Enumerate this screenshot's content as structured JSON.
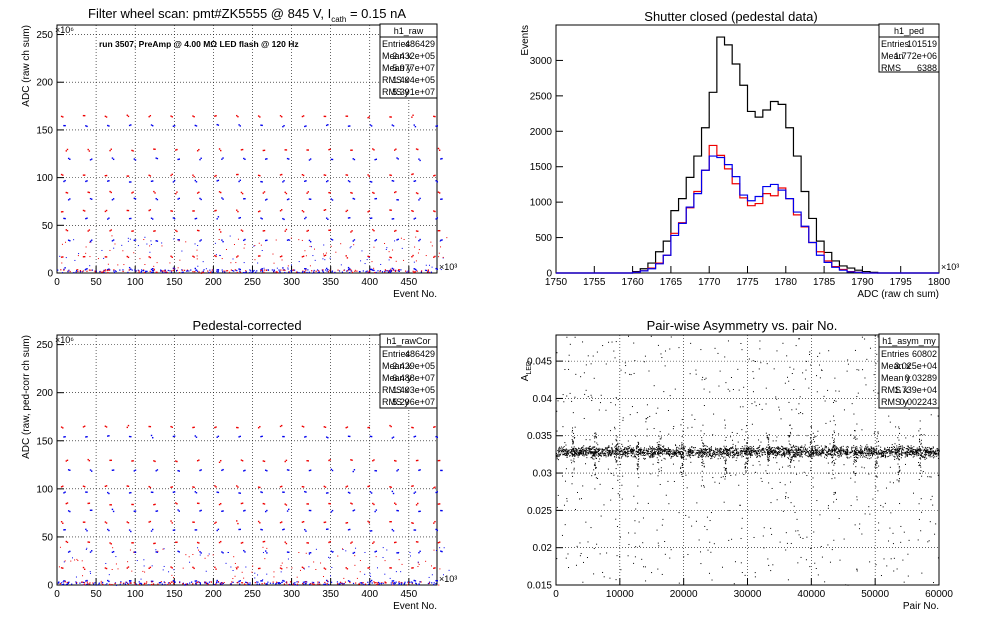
{
  "colors": {
    "red": "#ee0000",
    "blue": "#0000ee",
    "black": "#000000",
    "grid": "#000000"
  },
  "chart_data": [
    {
      "id": "raw",
      "type": "scatter",
      "title": "Filter wheel scan: pmt#ZK5555 @   845 V, I",
      "title_sub": "cath",
      "title_tail": " = 0.15 nA",
      "annotation": "run 3507, PreAmp @ 4.00 MΩ LED flash @  120 Hz",
      "xlabel": "Event No.",
      "ylabel": "ADC (raw ch sum)",
      "x_exponent": "×10³",
      "y_exponent": "×10⁶",
      "xlim": [
        0,
        486
      ],
      "ylim": [
        0,
        260
      ],
      "xticks": [
        0,
        50,
        100,
        150,
        200,
        250,
        300,
        350,
        400,
        450
      ],
      "yticks": [
        0,
        50,
        100,
        150,
        200,
        250
      ],
      "grid": true,
      "stats": {
        "name": "h1_raw",
        "rows": [
          [
            "Entries",
            "486429"
          ],
          [
            "Mean x",
            "2.432e+05"
          ],
          [
            "Mean y",
            "5.977e+07"
          ],
          [
            "RMS x",
            "1.404e+05"
          ],
          [
            "RMS y",
            "5.391e+07"
          ]
        ]
      },
      "period": 28,
      "levels": [
        165,
        155,
        130,
        120,
        103,
        97,
        85,
        78,
        66,
        58,
        45,
        35,
        18,
        5
      ],
      "series": [
        {
          "color": "red"
        },
        {
          "color": "blue"
        }
      ]
    },
    {
      "id": "ped",
      "type": "histogram",
      "title": "Shutter closed (pedestal data)",
      "xlabel": "ADC (raw ch sum)",
      "ylabel": "Events",
      "x_exponent": "×10³",
      "xlim": [
        1750,
        1800
      ],
      "ylim": [
        0,
        3500
      ],
      "xticks": [
        1750,
        1755,
        1760,
        1765,
        1770,
        1775,
        1780,
        1785,
        1790,
        1795,
        1800
      ],
      "yticks": [
        0,
        500,
        1000,
        1500,
        2000,
        2500,
        3000
      ],
      "grid": false,
      "stats": {
        "name": "h1_ped",
        "rows": [
          [
            "Entries",
            "101519"
          ],
          [
            "Mean",
            "1.772e+06"
          ],
          [
            "RMS",
            "6388"
          ]
        ]
      },
      "bin_start": 1750,
      "bin_width": 1,
      "series": [
        {
          "color": "black",
          "values": [
            0,
            0,
            0,
            0,
            0,
            0,
            0,
            0,
            0,
            0,
            20,
            60,
            140,
            300,
            450,
            880,
            1050,
            1350,
            1650,
            2050,
            2550,
            3330,
            3220,
            2950,
            2650,
            2280,
            2200,
            2300,
            2420,
            2380,
            2050,
            1650,
            1150,
            770,
            450,
            290,
            170,
            100,
            70,
            40,
            20,
            10,
            0,
            0,
            0,
            0,
            0,
            0,
            0,
            0
          ]
        },
        {
          "color": "red",
          "values": [
            0,
            0,
            0,
            0,
            0,
            0,
            0,
            0,
            0,
            0,
            10,
            30,
            70,
            140,
            250,
            560,
            710,
            920,
            1150,
            1450,
            1800,
            1660,
            1470,
            1260,
            1060,
            950,
            980,
            1120,
            1090,
            1200,
            1050,
            820,
            650,
            430,
            300,
            170,
            90,
            50,
            20,
            10,
            0,
            0,
            0,
            0,
            0,
            0,
            0,
            0,
            0,
            0
          ]
        },
        {
          "color": "blue",
          "values": [
            0,
            0,
            0,
            0,
            0,
            0,
            0,
            0,
            0,
            0,
            10,
            30,
            60,
            130,
            250,
            530,
            700,
            930,
            1120,
            1450,
            1650,
            1630,
            1530,
            1360,
            1100,
            1020,
            1080,
            1220,
            1250,
            1170,
            1050,
            860,
            660,
            430,
            250,
            150,
            80,
            40,
            15,
            10,
            0,
            0,
            0,
            0,
            0,
            0,
            0,
            0,
            0,
            0
          ]
        }
      ]
    },
    {
      "id": "rawCor",
      "type": "scatter",
      "title": "Pedestal-corrected",
      "xlabel": "Event No.",
      "ylabel": "ADC (raw, ped-corr ch sum)",
      "x_exponent": "×10³",
      "y_exponent": "×10⁶",
      "xlim": [
        0,
        486
      ],
      "ylim": [
        0,
        260
      ],
      "xticks": [
        0,
        50,
        100,
        150,
        200,
        250,
        300,
        350,
        400,
        450
      ],
      "yticks": [
        0,
        50,
        100,
        150,
        200,
        250
      ],
      "grid": true,
      "stats": {
        "name": "h1_rawCor",
        "rows": [
          [
            "Entries",
            "486429"
          ],
          [
            "Mean x",
            "2.429e+05"
          ],
          [
            "Mean y",
            "6.488e+07"
          ],
          [
            "RMS x",
            "1.403e+05"
          ],
          [
            "RMS y",
            "5.296e+07"
          ]
        ]
      },
      "period": 28,
      "levels": [
        165,
        155,
        130,
        120,
        103,
        97,
        85,
        78,
        66,
        58,
        45,
        35,
        18,
        5
      ],
      "series": [
        {
          "color": "red"
        },
        {
          "color": "blue"
        }
      ]
    },
    {
      "id": "asym",
      "type": "scatter",
      "title": "Pair-wise Asymmetry vs. pair No.",
      "xlabel": "Pair No.",
      "ylabel": "A",
      "ylabel_sub": "LED",
      "xlim": [
        0,
        60000
      ],
      "ylim": [
        0.015,
        0.0485
      ],
      "xticks": [
        0,
        10000,
        20000,
        30000,
        40000,
        50000,
        60000
      ],
      "yticks": [
        0.015,
        0.02,
        0.025,
        0.03,
        0.035,
        0.04,
        0.045
      ],
      "grid": true,
      "stats": {
        "name": "h1_asym_my",
        "rows": [
          [
            "Entries",
            "60802"
          ],
          [
            "Mean x",
            "3.025e+04"
          ],
          [
            "Mean y",
            "0.03289"
          ],
          [
            "RMS x",
            "1.739e+04"
          ],
          [
            "RMS y",
            "0.002243"
          ]
        ]
      },
      "band_center": 0.03289,
      "band_halfwidth": 0.0007,
      "spike_period": 3400,
      "series": [
        {
          "color": "black"
        }
      ]
    }
  ]
}
